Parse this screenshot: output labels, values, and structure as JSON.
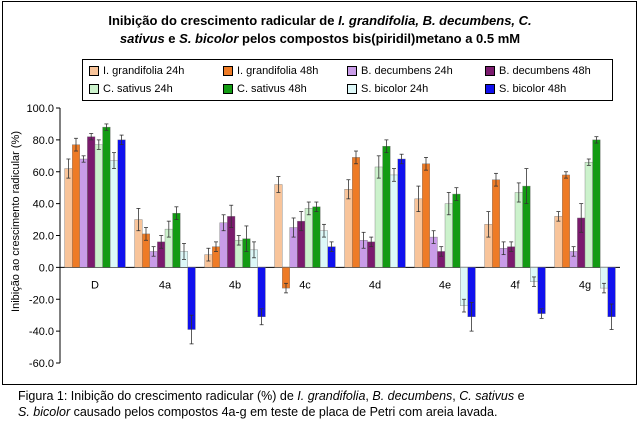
{
  "title_parts": {
    "line1_a": "Inibição do crescimento radicular de ",
    "line1_b": "I. grandifolia, B. decumbens, C.",
    "line2_a": "sativus",
    "line2_b": " e ",
    "line2_c": "S. bicolor",
    "line2_d": "  pelos compostos bis(piridil)metano a 0.5 mM"
  },
  "caption_parts": {
    "a": "Figura 1: Inibição do crescimento radicular (%) de ",
    "b": "I. grandifolia",
    "c": ", ",
    "d": "B. decumbens",
    "e": ", ",
    "f": "C. sativus",
    "g": " e",
    "h": "S. bicolor",
    "i": " causado  pelos compostos 4a-g em teste de placa de Petri com areia lavada."
  },
  "chart_data": {
    "type": "bar",
    "title": "Inibição do crescimento radicular de I. grandifolia, B. decumbens, C. sativus e S. bicolor pelos compostos bis(piridil)metano a 0.5 mM",
    "ylabel": "Inibição ao crescimento radicular (%)",
    "xlabel": "",
    "ylim": [
      -60,
      100
    ],
    "yticks": [
      "100.0",
      "80.0",
      "60.0",
      "40.0",
      "20.0",
      "0.0",
      "-20.0",
      "-40.0",
      "-60.0"
    ],
    "grid": false,
    "error_bars": true,
    "legend_position": "top",
    "categories": [
      "D",
      "4a",
      "4b",
      "4c",
      "4d",
      "4e",
      "4f",
      "4g"
    ],
    "series": [
      {
        "name": "I. grandifolia 24h",
        "color": "#f8c49a",
        "values": [
          62,
          30,
          8,
          52,
          49,
          43,
          27,
          32
        ],
        "errors": [
          6,
          7,
          4,
          5,
          6,
          8,
          8,
          3
        ]
      },
      {
        "name": "I. grandifolia 48h",
        "color": "#ee7b26",
        "values": [
          77,
          21,
          13,
          -13,
          69,
          65,
          55,
          58
        ],
        "errors": [
          4,
          4,
          3,
          3,
          4,
          4,
          4,
          2
        ]
      },
      {
        "name": "B. decumbens 24h",
        "color": "#c99ce8",
        "values": [
          68,
          10,
          28,
          25,
          17,
          19,
          12,
          10
        ],
        "errors": [
          2,
          3,
          5,
          6,
          5,
          4,
          4,
          3
        ]
      },
      {
        "name": "B. decumbens 48h",
        "color": "#7b1b6e",
        "values": [
          82,
          16,
          32,
          29,
          16,
          10,
          13,
          31
        ],
        "errors": [
          2,
          4,
          7,
          6,
          3,
          3,
          3,
          9
        ]
      },
      {
        "name": "C. sativus 24h",
        "color": "#ccf2cc",
        "values": [
          77,
          24,
          17,
          37,
          63,
          40,
          47,
          66
        ],
        "errors": [
          3,
          5,
          3,
          4,
          7,
          7,
          6,
          2
        ]
      },
      {
        "name": "C. sativus 48h",
        "color": "#139b13",
        "values": [
          88,
          34,
          18,
          38,
          76,
          46,
          51,
          80
        ],
        "errors": [
          2,
          4,
          8,
          3,
          4,
          4,
          11,
          2
        ]
      },
      {
        "name": "S. bicolor  24h",
        "color": "#ddf8f8",
        "values": [
          67,
          10,
          11,
          23,
          58,
          -24,
          -9,
          -13
        ],
        "errors": [
          5,
          5,
          5,
          4,
          4,
          4,
          3,
          3
        ]
      },
      {
        "name": "S. bicolor 48h",
        "color": "#1010ee",
        "values": [
          80,
          -39,
          -31,
          13,
          68,
          -31,
          -29,
          -31
        ],
        "errors": [
          3,
          9,
          5,
          3,
          3,
          9,
          3,
          8
        ]
      }
    ]
  }
}
